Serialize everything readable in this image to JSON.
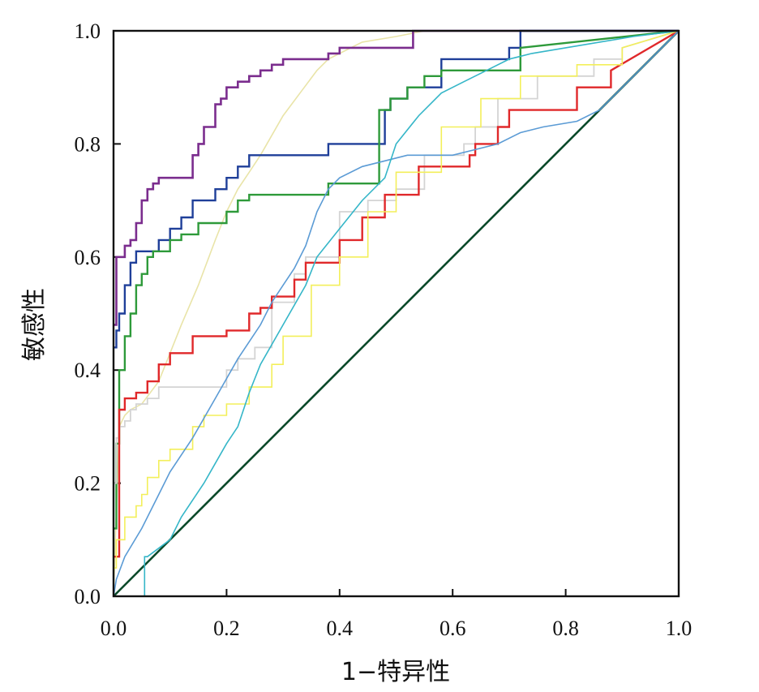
{
  "chart_data": {
    "type": "line",
    "title": "",
    "xlabel": "1−特异性",
    "ylabel": "敏感性",
    "xlim": [
      0,
      1
    ],
    "ylim": [
      0,
      1
    ],
    "xticks": [
      "0.0",
      "0.2",
      "0.4",
      "0.6",
      "0.8",
      "1.0"
    ],
    "yticks": [
      "0.0",
      "0.2",
      "0.4",
      "0.6",
      "0.8",
      "1.0"
    ],
    "grid": false,
    "legend": "none",
    "series": [
      {
        "color": "#0b4a2a",
        "width": 2.6,
        "x": [
          0,
          1
        ],
        "y": [
          0,
          1
        ]
      },
      {
        "color": "#e9e4a8",
        "width": 1.6,
        "x": [
          0,
          0.01,
          0.02,
          0.03,
          0.05,
          0.08,
          0.1,
          0.12,
          0.15,
          0.18,
          0.2,
          0.22,
          0.24,
          0.26,
          0.3,
          0.33,
          0.36,
          0.38,
          0.4,
          0.42,
          0.44,
          0.5,
          0.55,
          0.6,
          0.7,
          0.8,
          0.9,
          1.0
        ],
        "y": [
          0,
          0.3,
          0.32,
          0.33,
          0.34,
          0.38,
          0.43,
          0.48,
          0.55,
          0.63,
          0.68,
          0.72,
          0.75,
          0.78,
          0.85,
          0.89,
          0.93,
          0.95,
          0.96,
          0.97,
          0.98,
          0.99,
          1.0,
          1.0,
          1.0,
          1.0,
          1.0,
          1.0
        ]
      },
      {
        "color": "#7b2d8e",
        "width": 2.6,
        "x": [
          0,
          0.005,
          0.005,
          0.01,
          0.01,
          0.02,
          0.02,
          0.03,
          0.03,
          0.04,
          0.04,
          0.05,
          0.05,
          0.06,
          0.06,
          0.07,
          0.07,
          0.08,
          0.08,
          0.14,
          0.14,
          0.15,
          0.15,
          0.16,
          0.16,
          0.18,
          0.18,
          0.19,
          0.19,
          0.2,
          0.2,
          0.22,
          0.22,
          0.24,
          0.24,
          0.26,
          0.26,
          0.28,
          0.28,
          0.3,
          0.3,
          0.38,
          0.38,
          0.4,
          0.4,
          0.53,
          0.53,
          1.0
        ],
        "y": [
          0.48,
          0.48,
          0.6,
          0.6,
          0.6,
          0.6,
          0.62,
          0.62,
          0.63,
          0.63,
          0.66,
          0.66,
          0.7,
          0.7,
          0.72,
          0.72,
          0.73,
          0.73,
          0.74,
          0.74,
          0.78,
          0.78,
          0.8,
          0.8,
          0.83,
          0.83,
          0.87,
          0.87,
          0.88,
          0.88,
          0.9,
          0.9,
          0.91,
          0.91,
          0.92,
          0.92,
          0.93,
          0.93,
          0.94,
          0.94,
          0.95,
          0.95,
          0.96,
          0.96,
          0.97,
          0.97,
          1.0,
          1.0
        ]
      },
      {
        "color": "#1f3f99",
        "width": 2.4,
        "x": [
          0,
          0.005,
          0.005,
          0.01,
          0.01,
          0.02,
          0.02,
          0.03,
          0.03,
          0.04,
          0.04,
          0.08,
          0.08,
          0.1,
          0.1,
          0.12,
          0.12,
          0.14,
          0.14,
          0.18,
          0.18,
          0.2,
          0.2,
          0.22,
          0.22,
          0.24,
          0.24,
          0.38,
          0.38,
          0.48,
          0.48,
          0.49,
          0.49,
          0.52,
          0.52,
          0.58,
          0.58,
          0.7,
          0.7,
          0.72,
          0.72,
          1.0
        ],
        "y": [
          0.44,
          0.44,
          0.47,
          0.47,
          0.5,
          0.5,
          0.55,
          0.55,
          0.59,
          0.59,
          0.61,
          0.61,
          0.63,
          0.63,
          0.65,
          0.65,
          0.67,
          0.67,
          0.7,
          0.7,
          0.72,
          0.72,
          0.74,
          0.74,
          0.76,
          0.76,
          0.78,
          0.78,
          0.8,
          0.8,
          0.86,
          0.86,
          0.88,
          0.88,
          0.9,
          0.9,
          0.95,
          0.95,
          0.97,
          0.97,
          1.0,
          1.0
        ]
      },
      {
        "color": "#2e9a3a",
        "width": 2.4,
        "x": [
          0,
          0.005,
          0.005,
          0.01,
          0.01,
          0.02,
          0.02,
          0.03,
          0.03,
          0.04,
          0.04,
          0.05,
          0.05,
          0.06,
          0.06,
          0.07,
          0.07,
          0.1,
          0.1,
          0.12,
          0.12,
          0.15,
          0.15,
          0.2,
          0.2,
          0.22,
          0.22,
          0.24,
          0.24,
          0.38,
          0.38,
          0.47,
          0.47,
          0.49,
          0.49,
          0.52,
          0.52,
          0.55,
          0.55,
          0.58,
          0.58,
          0.72,
          0.72,
          1.0
        ],
        "y": [
          0.12,
          0.12,
          0.27,
          0.27,
          0.4,
          0.4,
          0.46,
          0.46,
          0.5,
          0.5,
          0.55,
          0.55,
          0.57,
          0.57,
          0.6,
          0.6,
          0.61,
          0.61,
          0.63,
          0.63,
          0.64,
          0.64,
          0.66,
          0.66,
          0.68,
          0.68,
          0.7,
          0.7,
          0.71,
          0.71,
          0.73,
          0.73,
          0.86,
          0.86,
          0.88,
          0.88,
          0.9,
          0.9,
          0.92,
          0.92,
          0.93,
          0.93,
          0.97,
          1.0
        ]
      },
      {
        "color": "#d4d4d4",
        "width": 1.8,
        "x": [
          0,
          0.005,
          0.005,
          0.01,
          0.01,
          0.02,
          0.02,
          0.03,
          0.03,
          0.04,
          0.04,
          0.06,
          0.06,
          0.08,
          0.08,
          0.2,
          0.2,
          0.22,
          0.22,
          0.25,
          0.25,
          0.28,
          0.28,
          0.32,
          0.32,
          0.34,
          0.34,
          0.4,
          0.4,
          0.45,
          0.45,
          0.5,
          0.5,
          0.55,
          0.55,
          0.62,
          0.62,
          0.64,
          0.64,
          0.68,
          0.68,
          0.75,
          0.75,
          0.85,
          0.85,
          0.9,
          0.9,
          1.0
        ],
        "y": [
          0.2,
          0.2,
          0.28,
          0.28,
          0.3,
          0.3,
          0.31,
          0.31,
          0.33,
          0.33,
          0.34,
          0.34,
          0.35,
          0.35,
          0.37,
          0.37,
          0.4,
          0.4,
          0.42,
          0.42,
          0.44,
          0.44,
          0.52,
          0.52,
          0.57,
          0.57,
          0.6,
          0.6,
          0.68,
          0.68,
          0.7,
          0.7,
          0.72,
          0.72,
          0.78,
          0.78,
          0.8,
          0.8,
          0.83,
          0.83,
          0.88,
          0.88,
          0.92,
          0.92,
          0.95,
          0.95,
          0.97,
          1.0
        ]
      },
      {
        "color": "#e0282a",
        "width": 2.4,
        "x": [
          0,
          0.01,
          0.01,
          0.02,
          0.02,
          0.04,
          0.04,
          0.06,
          0.06,
          0.08,
          0.08,
          0.1,
          0.1,
          0.14,
          0.14,
          0.2,
          0.2,
          0.24,
          0.24,
          0.26,
          0.26,
          0.28,
          0.28,
          0.32,
          0.32,
          0.34,
          0.34,
          0.4,
          0.4,
          0.44,
          0.44,
          0.48,
          0.48,
          0.54,
          0.54,
          0.63,
          0.63,
          0.64,
          0.64,
          0.68,
          0.68,
          0.7,
          0.7,
          0.82,
          0.82,
          0.88,
          0.88,
          1.0
        ],
        "y": [
          0.07,
          0.07,
          0.33,
          0.33,
          0.35,
          0.35,
          0.36,
          0.36,
          0.38,
          0.38,
          0.41,
          0.41,
          0.43,
          0.43,
          0.46,
          0.46,
          0.47,
          0.47,
          0.5,
          0.5,
          0.51,
          0.51,
          0.53,
          0.53,
          0.56,
          0.56,
          0.59,
          0.59,
          0.63,
          0.63,
          0.67,
          0.67,
          0.71,
          0.71,
          0.76,
          0.76,
          0.78,
          0.78,
          0.8,
          0.8,
          0.83,
          0.83,
          0.86,
          0.86,
          0.9,
          0.9,
          0.93,
          1.0
        ]
      },
      {
        "color": "#f3ef5a",
        "width": 1.6,
        "x": [
          0,
          0.005,
          0.005,
          0.02,
          0.02,
          0.04,
          0.04,
          0.05,
          0.05,
          0.06,
          0.06,
          0.08,
          0.08,
          0.1,
          0.1,
          0.14,
          0.14,
          0.16,
          0.16,
          0.2,
          0.2,
          0.24,
          0.24,
          0.28,
          0.28,
          0.3,
          0.3,
          0.35,
          0.35,
          0.4,
          0.4,
          0.45,
          0.45,
          0.5,
          0.5,
          0.58,
          0.58,
          0.65,
          0.65,
          0.72,
          0.72,
          0.82,
          0.82,
          0.9,
          0.9,
          1.0
        ],
        "y": [
          0.05,
          0.05,
          0.1,
          0.1,
          0.14,
          0.14,
          0.16,
          0.16,
          0.18,
          0.18,
          0.21,
          0.21,
          0.24,
          0.24,
          0.26,
          0.26,
          0.3,
          0.3,
          0.32,
          0.32,
          0.34,
          0.34,
          0.37,
          0.37,
          0.41,
          0.41,
          0.46,
          0.46,
          0.55,
          0.55,
          0.6,
          0.6,
          0.68,
          0.68,
          0.75,
          0.75,
          0.83,
          0.83,
          0.88,
          0.88,
          0.92,
          0.92,
          0.94,
          0.94,
          0.97,
          1.0
        ]
      },
      {
        "color": "#5b9bd5",
        "width": 1.6,
        "x": [
          0,
          0.005,
          0.02,
          0.05,
          0.08,
          0.1,
          0.14,
          0.18,
          0.22,
          0.26,
          0.28,
          0.3,
          0.32,
          0.34,
          0.36,
          0.38,
          0.4,
          0.44,
          0.48,
          0.52,
          0.56,
          0.6,
          0.64,
          0.68,
          0.72,
          0.76,
          0.82,
          0.86,
          0.9,
          0.95,
          1.0
        ],
        "y": [
          0,
          0.03,
          0.07,
          0.12,
          0.18,
          0.22,
          0.28,
          0.35,
          0.42,
          0.48,
          0.52,
          0.55,
          0.58,
          0.62,
          0.68,
          0.72,
          0.74,
          0.76,
          0.77,
          0.78,
          0.78,
          0.78,
          0.79,
          0.8,
          0.82,
          0.83,
          0.84,
          0.86,
          0.9,
          0.95,
          1.0
        ]
      },
      {
        "color": "#35b6c8",
        "width": 1.6,
        "x": [
          0.055,
          0.055,
          0.06,
          0.1,
          0.12,
          0.16,
          0.2,
          0.22,
          0.24,
          0.26,
          0.3,
          0.34,
          0.36,
          0.4,
          0.44,
          0.48,
          0.5,
          0.54,
          0.58,
          0.62,
          0.66,
          0.7,
          0.74,
          0.8,
          0.86,
          0.92,
          1.0
        ],
        "y": [
          0,
          0.07,
          0.07,
          0.1,
          0.14,
          0.2,
          0.27,
          0.3,
          0.36,
          0.41,
          0.48,
          0.55,
          0.6,
          0.65,
          0.7,
          0.74,
          0.8,
          0.85,
          0.89,
          0.91,
          0.93,
          0.95,
          0.96,
          0.97,
          0.98,
          0.99,
          1.0
        ]
      }
    ]
  }
}
